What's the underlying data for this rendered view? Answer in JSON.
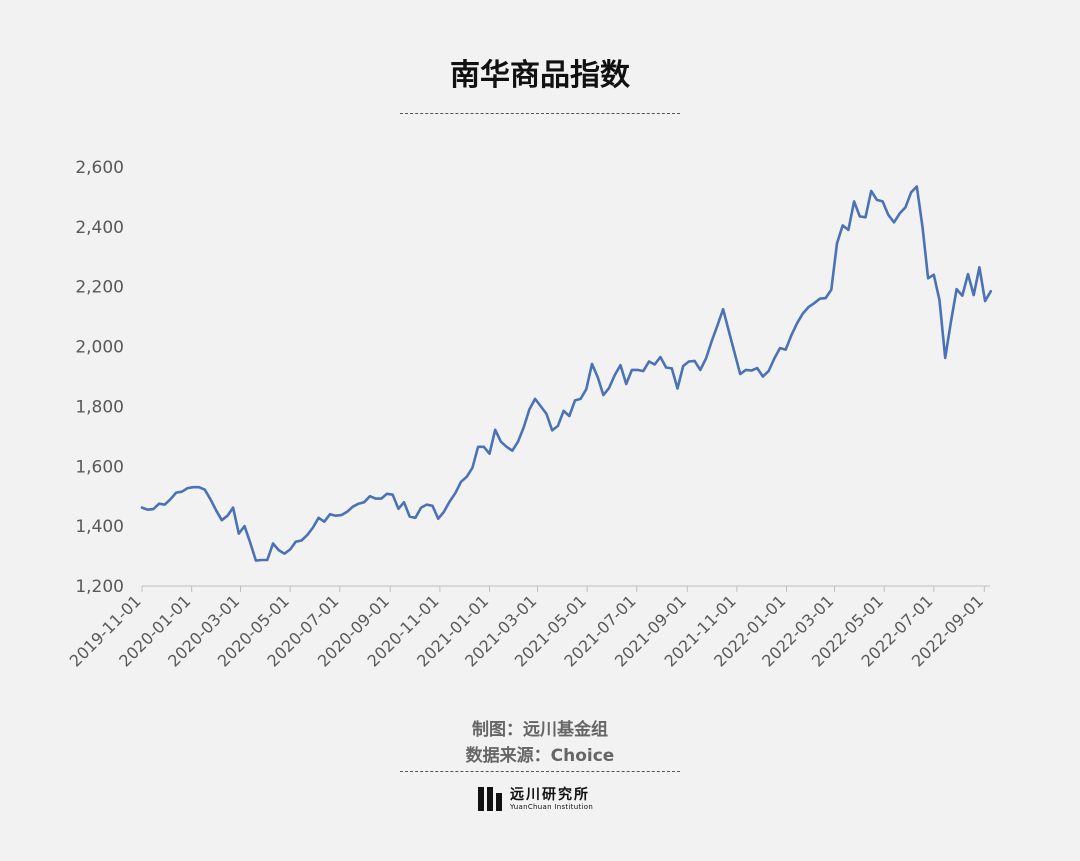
{
  "title": "南华商品指数",
  "credit": {
    "maker": "制图：远川基金组",
    "source": "数据来源：Choice"
  },
  "logo": {
    "name_cn": "远川研究所",
    "name_en": "YuanChuan Institution"
  },
  "colors": {
    "background": "#f2f2f2",
    "line": "#4a72b5",
    "axis_text": "#595959"
  },
  "chart_data": {
    "type": "line",
    "title": "南华商品指数",
    "xlabel": "",
    "ylabel": "",
    "ylim": [
      1200,
      2600
    ],
    "yticks": [
      1200,
      1400,
      1600,
      1800,
      2000,
      2200,
      2400,
      2600
    ],
    "ytick_labels": [
      "1,200",
      "1,400",
      "1,600",
      "1,800",
      "2,000",
      "2,200",
      "2,400",
      "2,600"
    ],
    "xlim": [
      "2019-11-01",
      "2022-09-08"
    ],
    "xtick_labels": [
      "2019-11-01",
      "2020-01-01",
      "2020-03-01",
      "2020-05-01",
      "2020-07-01",
      "2020-09-01",
      "2020-11-01",
      "2021-01-01",
      "2021-03-01",
      "2021-05-01",
      "2021-07-01",
      "2021-09-01",
      "2021-11-01",
      "2022-01-01",
      "2022-03-01",
      "2022-05-01",
      "2022-07-01",
      "2022-09-01"
    ],
    "grid": false,
    "series": [
      {
        "x": [
          "2019-11-01",
          "2019-11-08",
          "2019-11-15",
          "2019-11-22",
          "2019-11-29",
          "2019-12-06",
          "2019-12-13",
          "2019-12-20",
          "2019-12-27",
          "2020-01-03",
          "2020-01-10",
          "2020-01-17",
          "2020-01-24",
          "2020-01-31",
          "2020-02-07",
          "2020-02-14",
          "2020-02-21",
          "2020-02-28",
          "2020-03-06",
          "2020-03-13",
          "2020-03-20",
          "2020-03-27",
          "2020-04-03",
          "2020-04-10",
          "2020-04-17",
          "2020-04-24",
          "2020-05-01",
          "2020-05-08",
          "2020-05-15",
          "2020-05-22",
          "2020-05-29",
          "2020-06-05",
          "2020-06-12",
          "2020-06-19",
          "2020-06-26",
          "2020-07-03",
          "2020-07-10",
          "2020-07-17",
          "2020-07-24",
          "2020-07-31",
          "2020-08-07",
          "2020-08-14",
          "2020-08-21",
          "2020-08-28",
          "2020-09-04",
          "2020-09-11",
          "2020-09-18",
          "2020-09-25",
          "2020-10-02",
          "2020-10-09",
          "2020-10-16",
          "2020-10-23",
          "2020-10-30",
          "2020-11-06",
          "2020-11-13",
          "2020-11-20",
          "2020-11-27",
          "2020-12-04",
          "2020-12-11",
          "2020-12-18",
          "2020-12-25",
          "2021-01-01",
          "2021-01-08",
          "2021-01-15",
          "2021-01-22",
          "2021-01-29",
          "2021-02-05",
          "2021-02-12",
          "2021-02-19",
          "2021-02-26",
          "2021-03-05",
          "2021-03-12",
          "2021-03-19",
          "2021-03-26",
          "2021-04-02",
          "2021-04-09",
          "2021-04-16",
          "2021-04-23",
          "2021-04-30",
          "2021-05-07",
          "2021-05-14",
          "2021-05-21",
          "2021-05-28",
          "2021-06-04",
          "2021-06-11",
          "2021-06-18",
          "2021-06-25",
          "2021-07-02",
          "2021-07-09",
          "2021-07-16",
          "2021-07-23",
          "2021-07-30",
          "2021-08-06",
          "2021-08-13",
          "2021-08-20",
          "2021-08-27",
          "2021-09-03",
          "2021-09-10",
          "2021-09-17",
          "2021-09-24",
          "2021-10-01",
          "2021-10-08",
          "2021-10-15",
          "2021-10-22",
          "2021-10-29",
          "2021-11-05",
          "2021-11-12",
          "2021-11-19",
          "2021-11-26",
          "2021-12-03",
          "2021-12-10",
          "2021-12-17",
          "2021-12-24",
          "2021-12-31",
          "2022-01-07",
          "2022-01-14",
          "2022-01-21",
          "2022-01-28",
          "2022-02-04",
          "2022-02-11",
          "2022-02-18",
          "2022-02-25",
          "2022-03-04",
          "2022-03-11",
          "2022-03-18",
          "2022-03-25",
          "2022-04-01",
          "2022-04-08",
          "2022-04-15",
          "2022-04-22",
          "2022-04-29",
          "2022-05-06",
          "2022-05-13",
          "2022-05-20",
          "2022-05-27",
          "2022-06-03",
          "2022-06-10",
          "2022-06-17",
          "2022-06-24",
          "2022-07-01",
          "2022-07-08",
          "2022-07-15",
          "2022-07-22",
          "2022-07-29",
          "2022-08-05",
          "2022-08-12",
          "2022-08-19",
          "2022-08-26",
          "2022-09-02",
          "2022-09-09"
        ],
        "values": [
          1462,
          1455,
          1457,
          1475,
          1472,
          1490,
          1512,
          1515,
          1527,
          1530,
          1530,
          1522,
          1490,
          1453,
          1420,
          1435,
          1462,
          1375,
          1400,
          1345,
          1285,
          1287,
          1287,
          1342,
          1320,
          1308,
          1322,
          1348,
          1352,
          1370,
          1395,
          1428,
          1415,
          1440,
          1435,
          1437,
          1448,
          1465,
          1475,
          1480,
          1500,
          1492,
          1492,
          1508,
          1505,
          1458,
          1480,
          1432,
          1428,
          1462,
          1472,
          1468,
          1425,
          1448,
          1482,
          1510,
          1548,
          1565,
          1595,
          1665,
          1665,
          1642,
          1722,
          1682,
          1665,
          1652,
          1682,
          1730,
          1790,
          1825,
          1800,
          1775,
          1720,
          1735,
          1785,
          1768,
          1820,
          1825,
          1858,
          1942,
          1898,
          1838,
          1862,
          1905,
          1938,
          1875,
          1922,
          1922,
          1918,
          1950,
          1940,
          1965,
          1930,
          1927,
          1860,
          1935,
          1950,
          1952,
          1922,
          1960,
          2018,
          2070,
          2125,
          2052,
          1980,
          1908,
          1922,
          1920,
          1928,
          1900,
          1918,
          1960,
          1995,
          1990,
          2038,
          2078,
          2110,
          2132,
          2145,
          2160,
          2162,
          2190,
          2345,
          2405,
          2390,
          2485,
          2435,
          2432,
          2520,
          2490,
          2485,
          2440,
          2415,
          2445,
          2465,
          2515,
          2535,
          2400,
          2228,
          2240,
          2155,
          1962,
          2082,
          2192,
          2170,
          2242,
          2172,
          2265,
          2152,
          2185
        ]
      }
    ]
  }
}
